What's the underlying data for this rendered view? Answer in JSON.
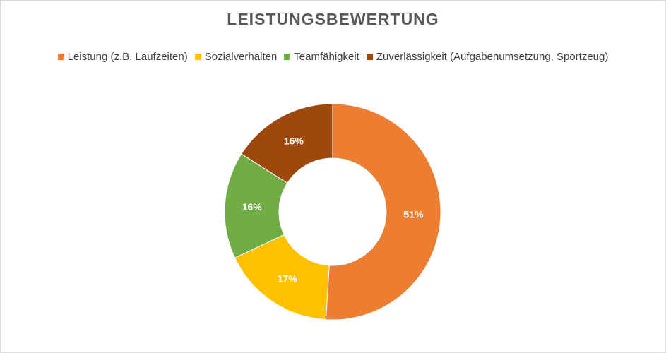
{
  "chart_data": {
    "type": "pie",
    "variant": "donut",
    "title": "LEISTUNGSBEWERTUNG",
    "legend_position": "top",
    "slices": [
      {
        "name": "Leistung (z.B. Laufzeiten)",
        "value": 51,
        "label": "51%",
        "color": "#ED7D31"
      },
      {
        "name": "Sozialverhalten",
        "value": 17,
        "label": "17%",
        "color": "#FFC000"
      },
      {
        "name": "Teamfähigkeit",
        "value": 16,
        "label": "16%",
        "color": "#70AD47"
      },
      {
        "name": "Zuverlässigkeit (Aufgabenumsetzung, Sportzeug)",
        "value": 16,
        "label": "16%",
        "color": "#9E480E"
      }
    ]
  }
}
